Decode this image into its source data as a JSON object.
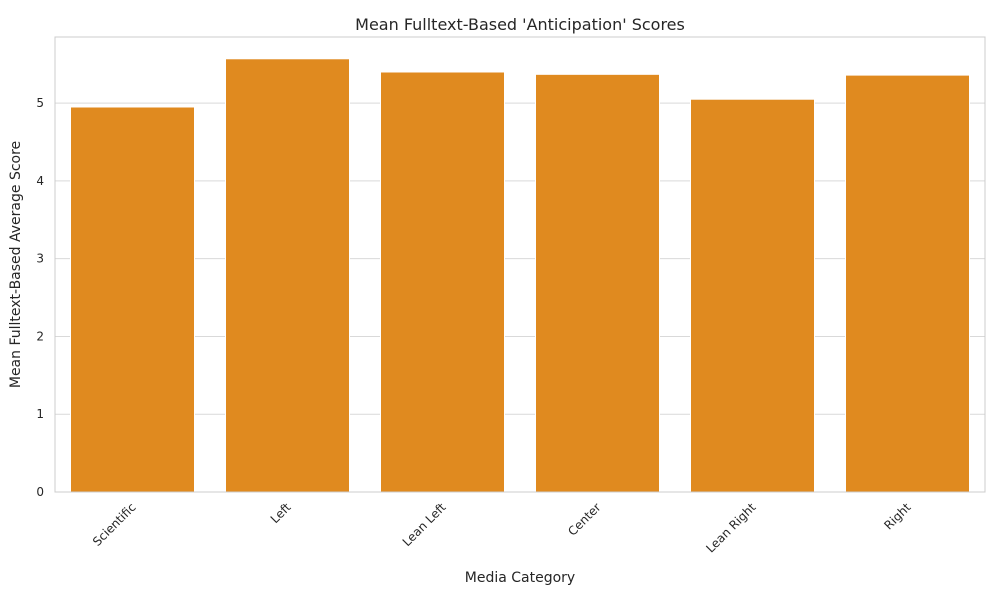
{
  "chart_data": {
    "type": "bar",
    "title": "Mean Fulltext-Based 'Anticipation' Scores",
    "xlabel": "Media Category",
    "ylabel": "Mean Fulltext-Based Average Score",
    "categories": [
      "Scientific",
      "Left",
      "Lean Left",
      "Center",
      "Lean Right",
      "Right"
    ],
    "values": [
      4.95,
      5.57,
      5.4,
      5.37,
      5.05,
      5.36
    ],
    "ylim": [
      0,
      5.85
    ],
    "yticks": [
      "0",
      "1",
      "2",
      "3",
      "4",
      "5"
    ],
    "grid": true,
    "bar_color": "#e08a1f",
    "grid_color": "#d9d9d9",
    "frame_color": "#cccccc"
  }
}
